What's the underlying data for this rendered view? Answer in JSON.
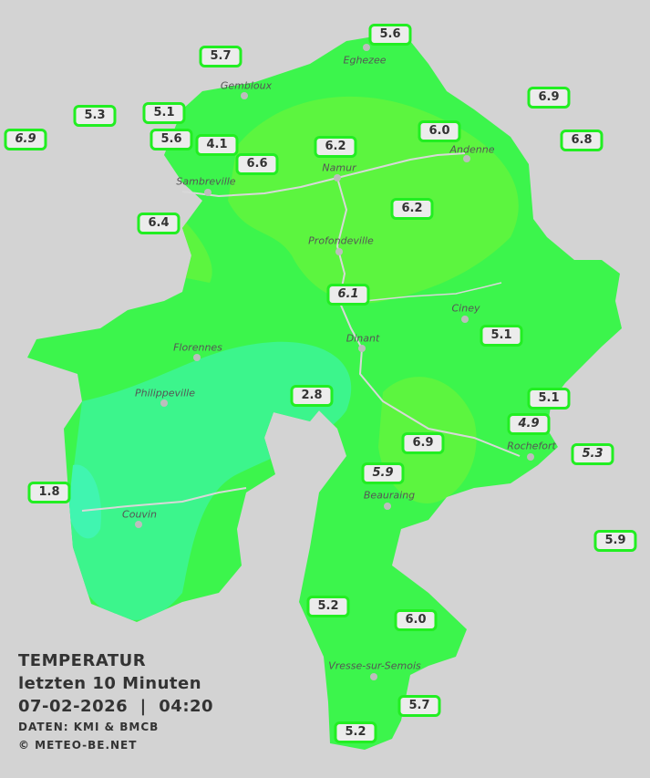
{
  "legend": {
    "title": "TEMPERATUR",
    "subtitle": "letzten 10 Minuten",
    "datetime": "07-02-2026  |  04:20",
    "source": "DATEN: KMI & BMCB",
    "copyright": "© METEO-BE.NET"
  },
  "colors": {
    "background": "#d3d3d3",
    "base_green": "#3cf54c",
    "warm_green": "#5cf53f",
    "cool_green": "#3cf58c",
    "label_border": "#22ee22"
  },
  "cities": [
    {
      "name": "Eghezee"
    },
    {
      "name": "Gembloux"
    },
    {
      "name": "Andenne"
    },
    {
      "name": "Namur"
    },
    {
      "name": "Sambreville"
    },
    {
      "name": "Profondeville"
    },
    {
      "name": "Ciney"
    },
    {
      "name": "Dinant"
    },
    {
      "name": "Florennes"
    },
    {
      "name": "Philippeville"
    },
    {
      "name": "Rochefort"
    },
    {
      "name": "Beauraing"
    },
    {
      "name": "Couvin"
    },
    {
      "name": "Vresse-sur-Semois"
    }
  ],
  "stations": [
    {
      "value": "5.6"
    },
    {
      "value": "5.7"
    },
    {
      "value": "5.3"
    },
    {
      "value": "5.1"
    },
    {
      "value": "6.9",
      "italic": true
    },
    {
      "value": "5.6"
    },
    {
      "value": "4.1"
    },
    {
      "value": "6.6"
    },
    {
      "value": "6.2"
    },
    {
      "value": "6.0"
    },
    {
      "value": "6.9"
    },
    {
      "value": "6.8"
    },
    {
      "value": "6.4"
    },
    {
      "value": "6.2"
    },
    {
      "value": "6.1",
      "italic": true
    },
    {
      "value": "5.1"
    },
    {
      "value": "2.8"
    },
    {
      "value": "5.1"
    },
    {
      "value": "4.9",
      "italic": true
    },
    {
      "value": "6.9"
    },
    {
      "value": "5.3",
      "italic": true
    },
    {
      "value": "5.9",
      "italic": true
    },
    {
      "value": "1.8"
    },
    {
      "value": "5.9"
    },
    {
      "value": "5.2"
    },
    {
      "value": "6.0"
    },
    {
      "value": "5.7"
    },
    {
      "value": "5.2"
    }
  ]
}
